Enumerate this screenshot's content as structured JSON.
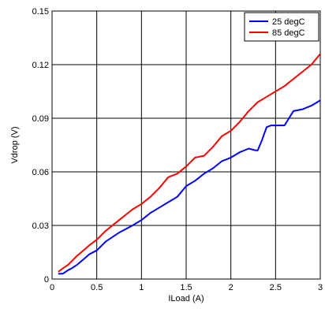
{
  "chart_data": {
    "type": "line",
    "title": "",
    "xlabel": "ILoad (A)",
    "ylabel": "Vdrop (V)",
    "xlim": [
      0,
      3
    ],
    "ylim": [
      0,
      0.15
    ],
    "x_ticks": [
      0,
      0.5,
      1,
      1.5,
      2,
      2.5,
      3
    ],
    "x_tick_labels": [
      "0",
      "0.5",
      "1",
      "1.5",
      "2",
      "2.5",
      "3"
    ],
    "y_ticks": [
      0,
      0.03,
      0.06,
      0.09,
      0.12,
      0.15
    ],
    "y_tick_labels": [
      "0",
      "0.03",
      "0.06",
      "0.09",
      "0.12",
      "0.15"
    ],
    "grid": true,
    "legend_position": "top-right",
    "series": [
      {
        "name": "25 degC",
        "color": "#0000ff",
        "x": [
          0.07,
          0.12,
          0.18,
          0.22,
          0.28,
          0.35,
          0.42,
          0.5,
          0.6,
          0.75,
          0.9,
          1.0,
          1.1,
          1.2,
          1.3,
          1.4,
          1.5,
          1.6,
          1.7,
          1.8,
          1.9,
          2.0,
          2.1,
          2.2,
          2.28,
          2.3,
          2.35,
          2.4,
          2.45,
          2.5,
          2.6,
          2.65,
          2.7,
          2.8,
          2.9,
          3.0
        ],
        "y": [
          0.003,
          0.003,
          0.005,
          0.006,
          0.008,
          0.011,
          0.014,
          0.016,
          0.021,
          0.026,
          0.03,
          0.033,
          0.037,
          0.04,
          0.043,
          0.046,
          0.052,
          0.055,
          0.059,
          0.062,
          0.066,
          0.068,
          0.071,
          0.073,
          0.072,
          0.072,
          0.078,
          0.085,
          0.086,
          0.086,
          0.086,
          0.09,
          0.094,
          0.095,
          0.097,
          0.1
        ]
      },
      {
        "name": "85 degC",
        "color": "#ff0000",
        "x": [
          0.07,
          0.12,
          0.18,
          0.22,
          0.28,
          0.35,
          0.42,
          0.5,
          0.6,
          0.75,
          0.9,
          1.0,
          1.1,
          1.2,
          1.3,
          1.4,
          1.5,
          1.6,
          1.7,
          1.8,
          1.9,
          2.0,
          2.1,
          2.2,
          2.3,
          2.4,
          2.5,
          2.6,
          2.7,
          2.8,
          2.9,
          3.0
        ],
        "y": [
          0.004,
          0.006,
          0.008,
          0.01,
          0.013,
          0.016,
          0.019,
          0.022,
          0.027,
          0.033,
          0.039,
          0.042,
          0.046,
          0.051,
          0.057,
          0.059,
          0.063,
          0.068,
          0.069,
          0.074,
          0.08,
          0.083,
          0.088,
          0.094,
          0.099,
          0.102,
          0.105,
          0.108,
          0.112,
          0.116,
          0.12,
          0.126
        ]
      }
    ]
  }
}
